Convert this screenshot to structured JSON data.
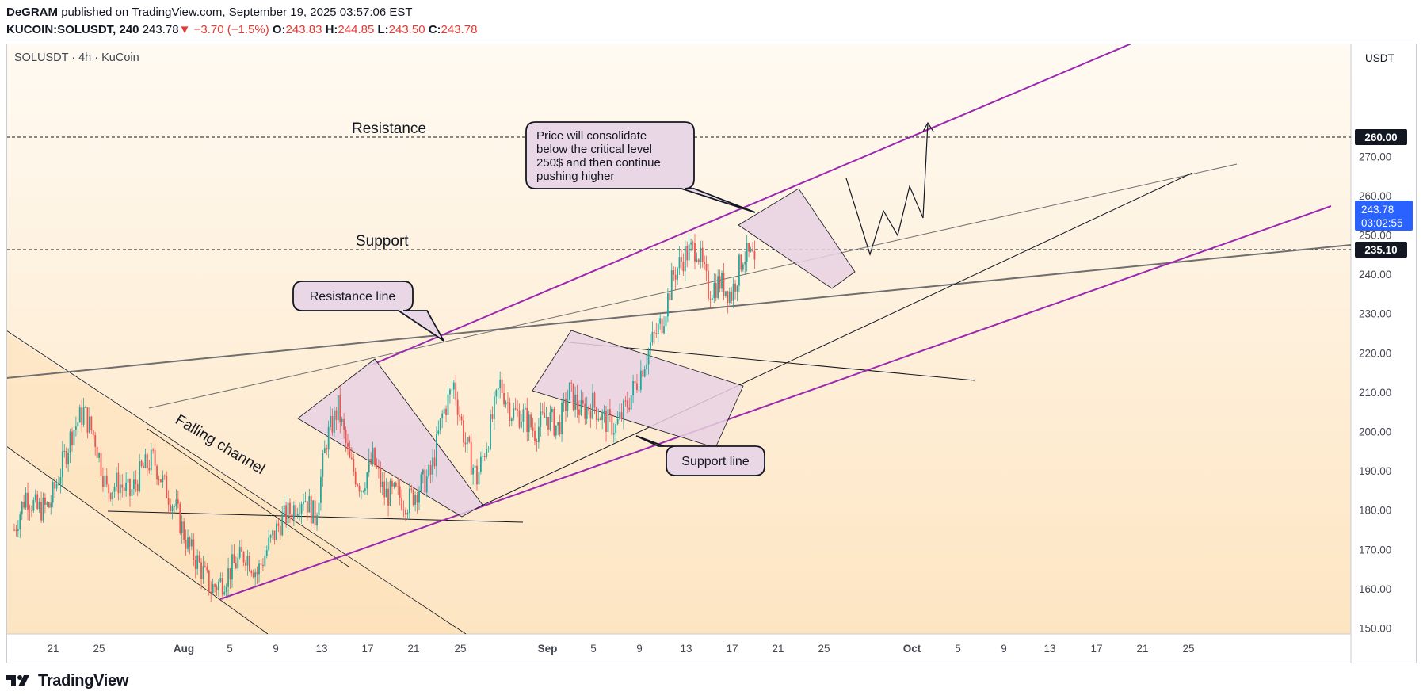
{
  "header": {
    "author": "DeGRAM",
    "published": "published on TradingView.com, September 19, 2025 03:57:06 EST",
    "symbol_tf": "KUCOIN:SOLUSDT, 240",
    "last": "243.78",
    "change": "−3.70 (−1.5%)",
    "o_label": "O:",
    "o": "243.83",
    "h_label": "H:",
    "h": "244.85",
    "l_label": "L:",
    "l": "243.50",
    "c_label": "C:",
    "c": "243.78"
  },
  "chart_label": "SOLUSDT · 4h · KuCoin",
  "currency": "USDT",
  "footer": {
    "brand": "TradingView"
  },
  "colors": {
    "bg_top": "#fffaf0",
    "bg_bottom": "#fde6c4",
    "up": "#26a69a",
    "down": "#ef5350",
    "channel": "#9c27b0",
    "shape_fill": "#ead7e6",
    "price_badge": "#2962ff"
  },
  "chart_data": {
    "type": "candlestick",
    "ylim": [
      149,
      280
    ],
    "y_ticks": [
      "150.00",
      "160.00",
      "170.00",
      "180.00",
      "190.00",
      "200.00",
      "210.00",
      "220.00",
      "230.00",
      "240.00",
      "250.00",
      "260.00",
      "270.00"
    ],
    "x_ticks": [
      "21",
      "25",
      "Aug",
      "5",
      "9",
      "13",
      "17",
      "21",
      "25",
      "Sep",
      "5",
      "9",
      "13",
      "17",
      "21",
      "25",
      "Oct",
      "5",
      "9",
      "13",
      "17",
      "21",
      "25"
    ],
    "price_labels": {
      "resistance": "260.00",
      "last": "243.78",
      "countdown": "03:02:55",
      "support": "235.10"
    },
    "levels": [
      {
        "label": "Resistance",
        "value": 260.0
      },
      {
        "label": "Support",
        "value": 235.1
      }
    ],
    "annotations": [
      {
        "text": "Resistance line"
      },
      {
        "text": "Support line"
      },
      {
        "text": "Falling channel"
      },
      {
        "lines": [
          "Price will consolidate",
          "below the critical level",
          "250$ and then continue",
          "pushing higher"
        ]
      }
    ],
    "close_path": [
      [
        "Jul 17",
        175
      ],
      [
        "Jul 18",
        184
      ],
      [
        "Jul 19",
        180
      ],
      [
        "Jul 20",
        181
      ],
      [
        "Jul 21",
        190
      ],
      [
        "Jul 22",
        200
      ],
      [
        "Jul 23",
        205
      ],
      [
        "Jul 24",
        198
      ],
      [
        "Jul 25",
        185
      ],
      [
        "Jul 26",
        187
      ],
      [
        "Jul 27",
        184
      ],
      [
        "Jul 28",
        190
      ],
      [
        "Jul 29",
        193
      ],
      [
        "Jul 30",
        186
      ],
      [
        "Jul 31",
        180
      ],
      [
        "Aug 1",
        171
      ],
      [
        "Aug 2",
        166
      ],
      [
        "Aug 3",
        160
      ],
      [
        "Aug 4",
        162
      ],
      [
        "Aug 5",
        166
      ],
      [
        "Aug 6",
        169
      ],
      [
        "Aug 7",
        164
      ],
      [
        "Aug 8",
        171
      ],
      [
        "Aug 9",
        177
      ],
      [
        "Aug 10",
        180
      ],
      [
        "Aug 11",
        184
      ],
      [
        "Aug 12",
        178
      ],
      [
        "Aug 13",
        198
      ],
      [
        "Aug 14",
        206
      ],
      [
        "Aug 15",
        192
      ],
      [
        "Aug 16",
        186
      ],
      [
        "Aug 17",
        193
      ],
      [
        "Aug 18",
        184
      ],
      [
        "Aug 19",
        184
      ],
      [
        "Aug 20",
        182
      ],
      [
        "Aug 21",
        186
      ],
      [
        "Aug 22",
        189
      ],
      [
        "Aug 23",
        204
      ],
      [
        "Aug 24",
        212
      ],
      [
        "Aug 25",
        197
      ],
      [
        "Aug 26",
        188
      ],
      [
        "Aug 27",
        199
      ],
      [
        "Aug 28",
        212
      ],
      [
        "Aug 29",
        205
      ],
      [
        "Aug 30",
        204
      ],
      [
        "Aug 31",
        200
      ],
      [
        "Sep 1",
        204
      ],
      [
        "Sep 2",
        201
      ],
      [
        "Sep 3",
        210
      ],
      [
        "Sep 4",
        205
      ],
      [
        "Sep 5",
        207
      ],
      [
        "Sep 6",
        203
      ],
      [
        "Sep 7",
        201
      ],
      [
        "Sep 8",
        207
      ],
      [
        "Sep 9",
        214
      ],
      [
        "Sep 10",
        222
      ],
      [
        "Sep 11",
        228
      ],
      [
        "Sep 12",
        240
      ],
      [
        "Sep 13",
        245
      ],
      [
        "Sep 14",
        247
      ],
      [
        "Sep 15",
        236
      ],
      [
        "Sep 16",
        238
      ],
      [
        "Sep 17",
        235
      ],
      [
        "Sep 18",
        245
      ],
      [
        "Sep 19",
        243.78
      ]
    ]
  }
}
